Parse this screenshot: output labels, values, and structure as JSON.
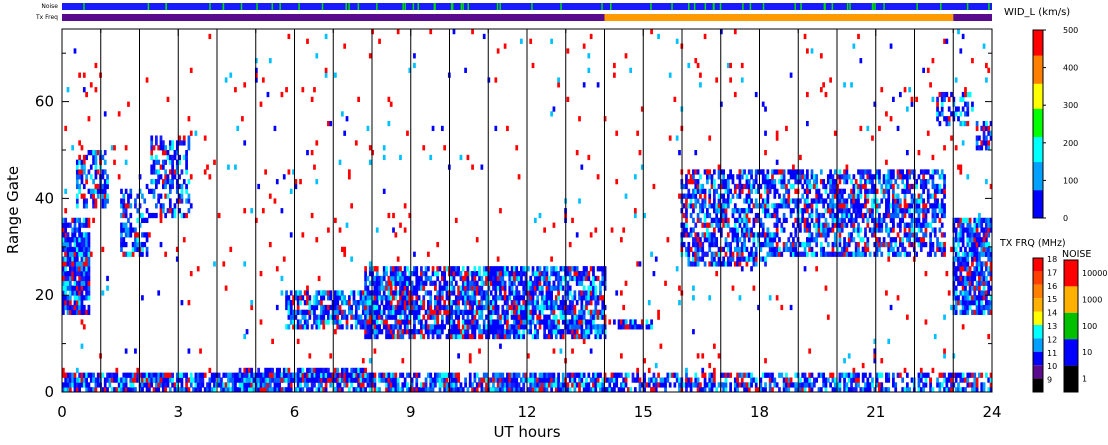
{
  "chart_data": {
    "type": "heatmap",
    "parameter": "WID_L",
    "colorbar_title": "WID_L (km/s)",
    "xlabel": "UT hours",
    "ylabel": "Range Gate",
    "xlim": [
      0,
      24
    ],
    "ylim": [
      0,
      75
    ],
    "x_ticks": [
      "0",
      "3",
      "6",
      "9",
      "12",
      "15",
      "18",
      "21",
      "24"
    ],
    "y_ticks": [
      "0",
      "20",
      "40",
      "60"
    ],
    "vertical_lines_hours": [
      1,
      2,
      3,
      4,
      5,
      6,
      7,
      8,
      9,
      10,
      11,
      12,
      13,
      14,
      15,
      16,
      17,
      18,
      19,
      20,
      21,
      22,
      23
    ],
    "colorbar": {
      "range": [
        0,
        500
      ],
      "tick_labels": [
        "0",
        "100",
        "200",
        "300",
        "400",
        "500"
      ],
      "colors": [
        "#0000ff",
        "#00a0ff",
        "#00ffff",
        "#00ff00",
        "#ffff00",
        "#ff8000",
        "#ff0000"
      ]
    },
    "strips": {
      "noise_label": "Noise",
      "txfreq_label": "Tx Freq",
      "noise_base_color": "#1a1aff",
      "noise_tick_color": "#00e000",
      "txfreq_segments": [
        {
          "start": 0,
          "end": 14,
          "color": "#5a0a8c"
        },
        {
          "start": 14,
          "end": 23,
          "color": "#ff9a00"
        },
        {
          "start": 23,
          "end": 24,
          "color": "#5a0a8c"
        }
      ]
    },
    "tx_freq_scale": {
      "title": "TX FRQ (MHz)",
      "labels": [
        "18",
        "17",
        "16",
        "15",
        "14",
        "13",
        "12",
        "11",
        "10",
        "9"
      ],
      "colors": [
        "#ff0000",
        "#ff4000",
        "#ff8000",
        "#ffb000",
        "#ffff00",
        "#00ffff",
        "#00a0ff",
        "#0000ff",
        "#5a0a8c",
        "#000000"
      ]
    },
    "noise_scale": {
      "title": "NOISE",
      "labels": [
        "10000",
        "1000",
        "100",
        "10",
        "1"
      ],
      "colors": [
        "#ff0000",
        "#ffb000",
        "#00c000",
        "#0000ff",
        "#000000"
      ]
    },
    "echo_regions": [
      {
        "t0": 0.0,
        "t1": 0.7,
        "g0": 16,
        "g1": 36,
        "density": 0.85
      },
      {
        "t0": 0.4,
        "t1": 1.2,
        "g0": 38,
        "g1": 50,
        "density": 0.55
      },
      {
        "t0": 1.5,
        "t1": 2.2,
        "g0": 28,
        "g1": 42,
        "density": 0.5
      },
      {
        "t0": 2.3,
        "t1": 3.3,
        "g0": 36,
        "g1": 53,
        "density": 0.5
      },
      {
        "t0": 0.0,
        "t1": 14.0,
        "g0": 0,
        "g1": 4,
        "density": 0.8
      },
      {
        "t0": 14.0,
        "t1": 24.0,
        "g0": 0,
        "g1": 4,
        "density": 0.6
      },
      {
        "t0": 4.6,
        "t1": 8.0,
        "g0": 2,
        "g1": 5,
        "density": 0.7
      },
      {
        "t0": 5.8,
        "t1": 8.2,
        "g0": 13,
        "g1": 21,
        "density": 0.7
      },
      {
        "t0": 7.8,
        "t1": 14.0,
        "g0": 11,
        "g1": 26,
        "density": 0.75
      },
      {
        "t0": 14.2,
        "t1": 15.2,
        "g0": 13,
        "g1": 15,
        "density": 0.6
      },
      {
        "t0": 16.0,
        "t1": 18.2,
        "g0": 26,
        "g1": 46,
        "density": 0.6
      },
      {
        "t0": 18.2,
        "t1": 22.8,
        "g0": 28,
        "g1": 46,
        "density": 0.6
      },
      {
        "t0": 22.6,
        "t1": 23.5,
        "g0": 55,
        "g1": 62,
        "density": 0.45
      },
      {
        "t0": 23.0,
        "t1": 24.0,
        "g0": 16,
        "g1": 36,
        "density": 0.8
      },
      {
        "t0": 23.6,
        "t1": 24.0,
        "g0": 50,
        "g1": 56,
        "density": 0.55
      },
      {
        "t0": 0.0,
        "t1": 24.0,
        "g0": 0,
        "g1": 75,
        "density": 0.02
      }
    ]
  }
}
